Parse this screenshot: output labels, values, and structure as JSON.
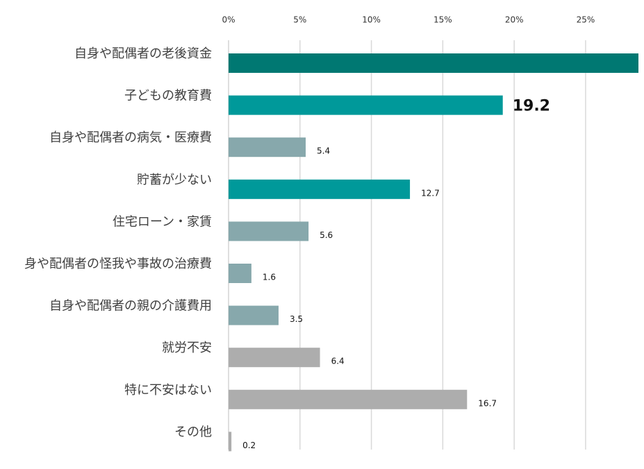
{
  "chart_data": {
    "type": "bar",
    "orientation": "horizontal",
    "categories": [
      "自身や配偶者の老後資金",
      "子どもの教育費",
      "自身や配偶者の病気・医療費",
      "貯蓄が少ない",
      "住宅ローン・家賃",
      "身や配偶者の怪我や事故の治療費",
      "自身や配偶者の親の介護費用",
      "就労不安",
      "特に不安はない",
      "その他"
    ],
    "values": [
      28.7,
      19.2,
      5.4,
      12.7,
      5.6,
      1.6,
      3.5,
      6.4,
      16.7,
      0.2
    ],
    "value_labels": [
      "",
      "19.2",
      "5.4",
      "12.7",
      "5.6",
      "1.6",
      "3.5",
      "6.4",
      "16.7",
      "0.2"
    ],
    "highlight_label_index": 1,
    "bar_colors": [
      "#007872",
      "#00999a",
      "#87a8ac",
      "#00999a",
      "#87a8ac",
      "#87a8ac",
      "#87a8ac",
      "#adadad",
      "#adadad",
      "#adadad"
    ],
    "xlim": [
      0,
      28.7
    ],
    "xticks": [
      0,
      5,
      10,
      15,
      20,
      25
    ],
    "xtick_labels": [
      "0%",
      "5%",
      "10%",
      "15%",
      "20%",
      "25%"
    ],
    "axis_position": "top",
    "grid": true,
    "gridline_color": "#d9d9d9",
    "title": "",
    "xlabel": "",
    "ylabel": ""
  }
}
